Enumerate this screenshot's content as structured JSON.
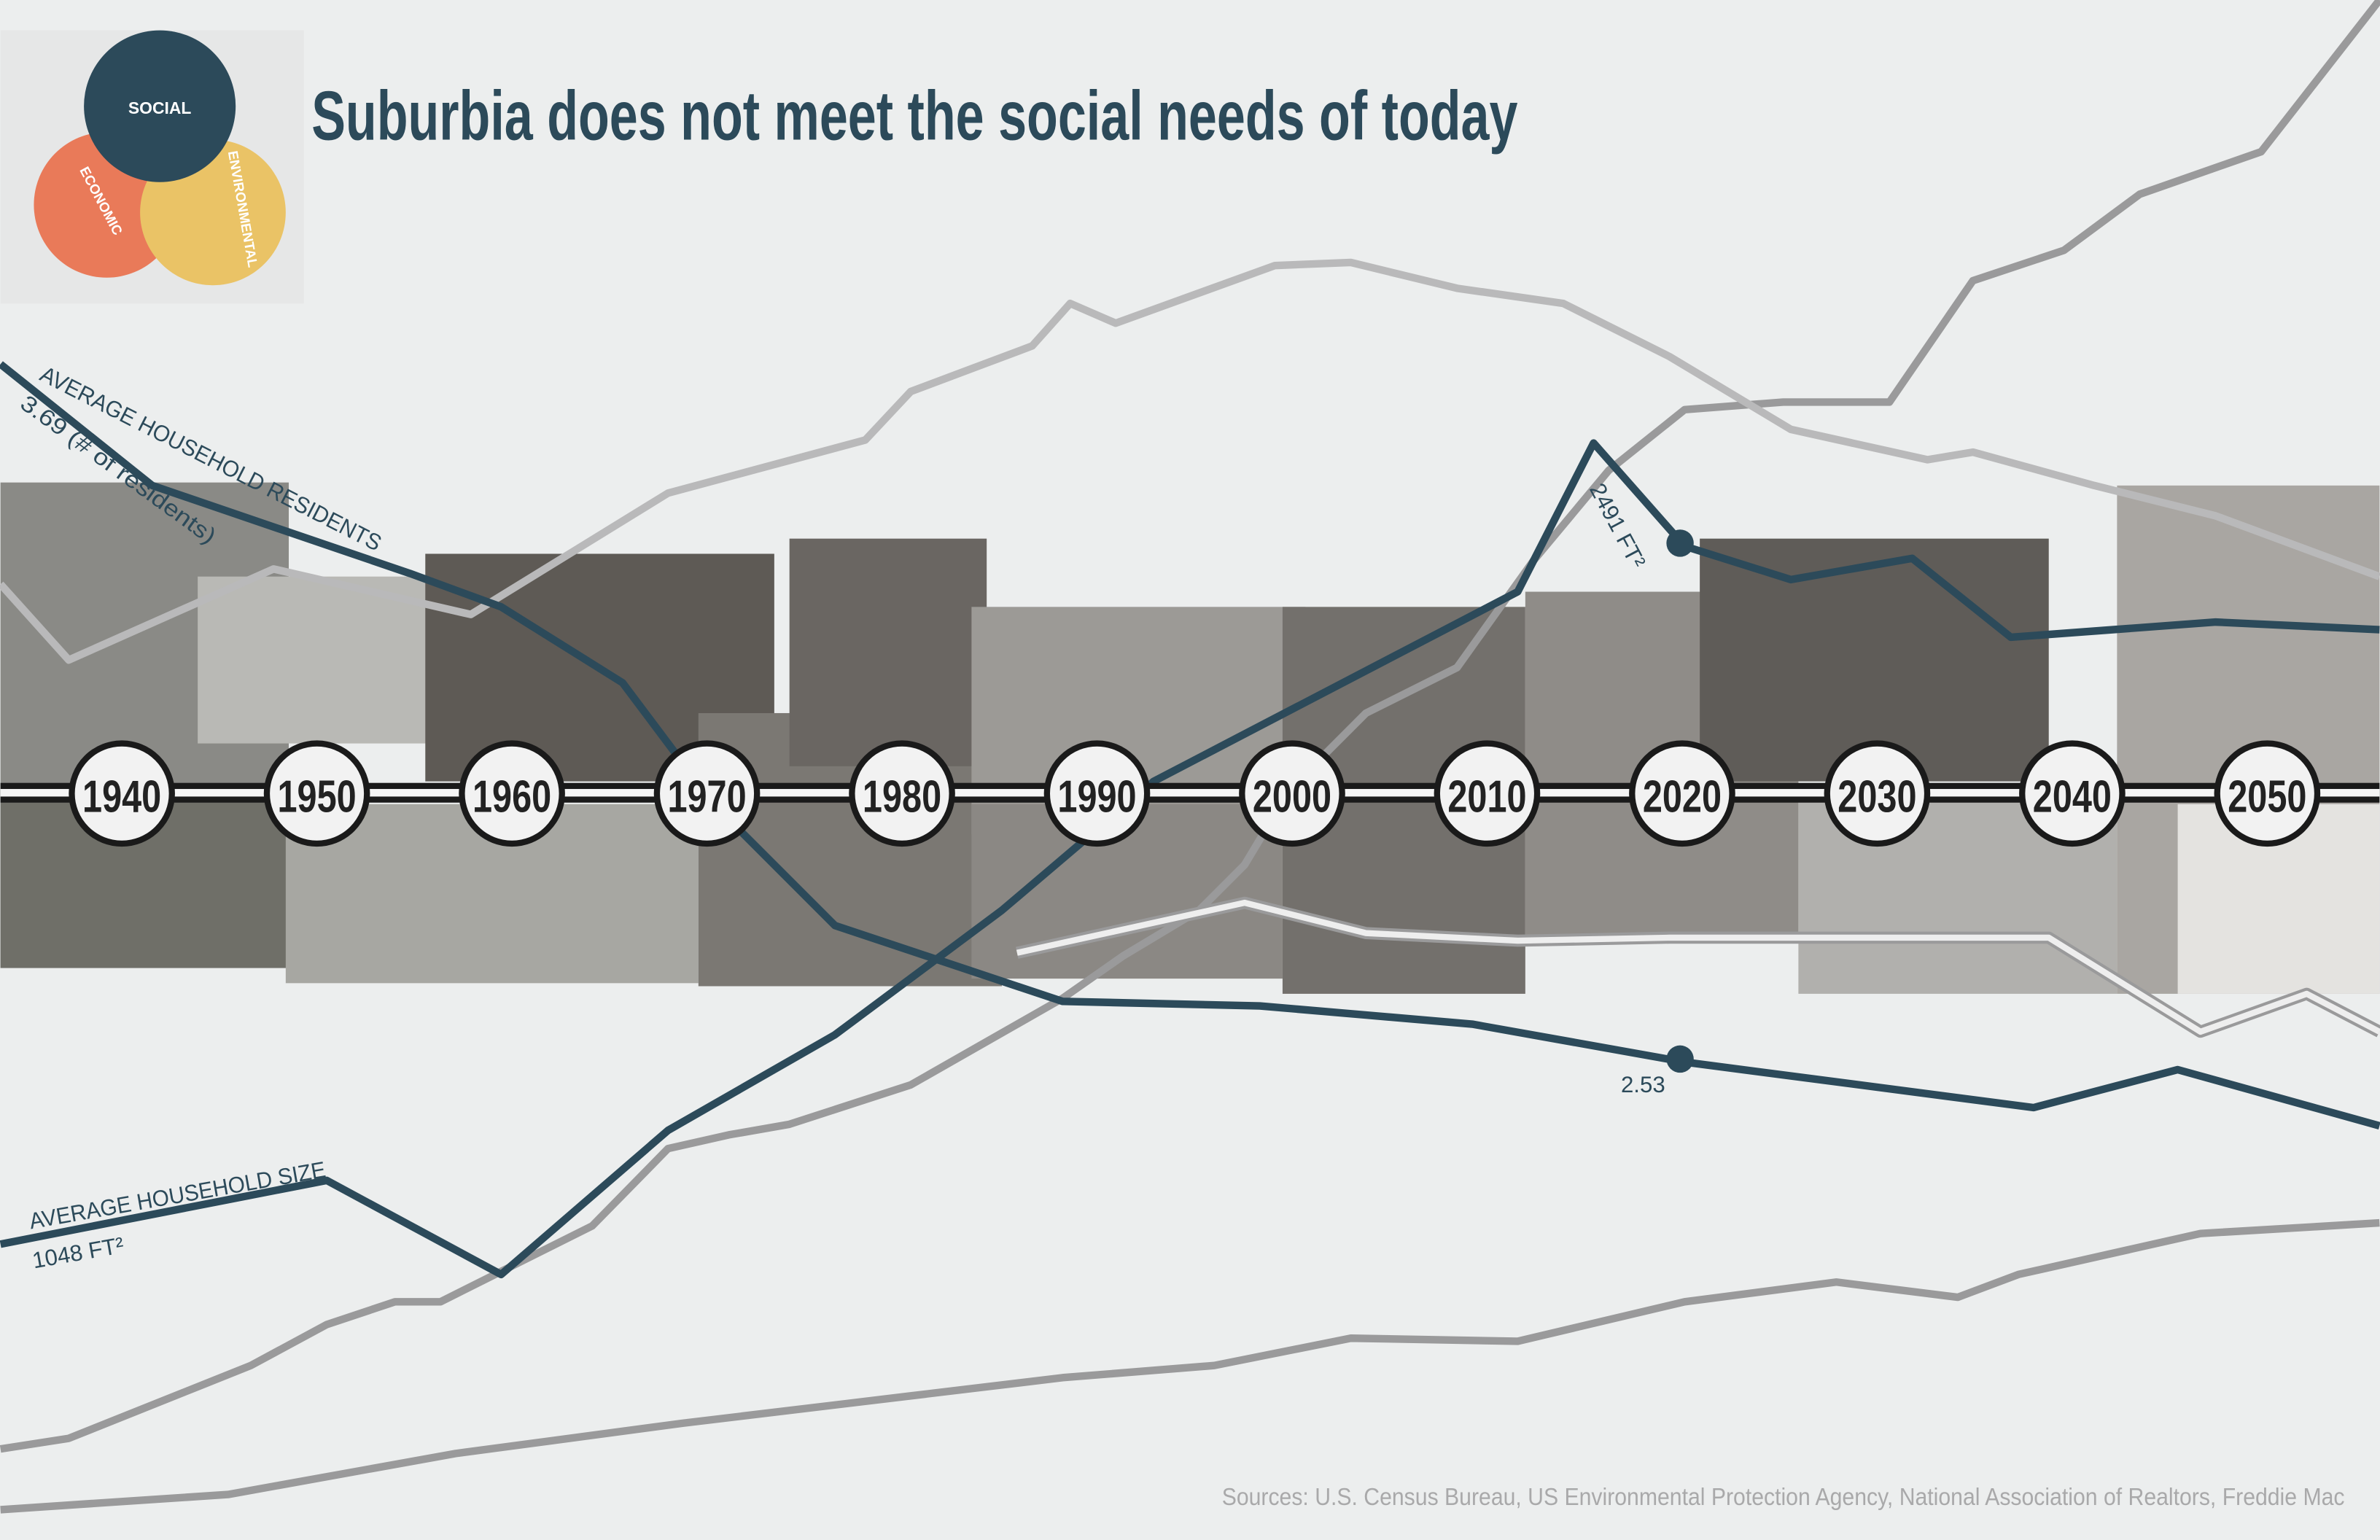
{
  "logo": {
    "labels": [
      "SOCIAL",
      "ECONOMIC",
      "ENVIRONMENTAL"
    ]
  },
  "title": "Suburbia does not meet the social needs of today",
  "timeline": [
    1940,
    1950,
    1960,
    1970,
    1980,
    1990,
    2000,
    2010,
    2020,
    2030,
    2040,
    2050
  ],
  "annotations": {
    "residents_label": "AVERAGE HOUSEHOLD RESIDENTS",
    "residents_start": "3.69 (# of residents)",
    "residents_end": "2.53",
    "size_label": "AVERAGE HOUSEHOLD SIZE",
    "size_start": "1048 FT²",
    "size_end": "2491 FT²"
  },
  "sources": "Sources: U.S. Census Bureau, US Environmental Protection Agency, National Association of Realtors, Freddie Mac"
}
